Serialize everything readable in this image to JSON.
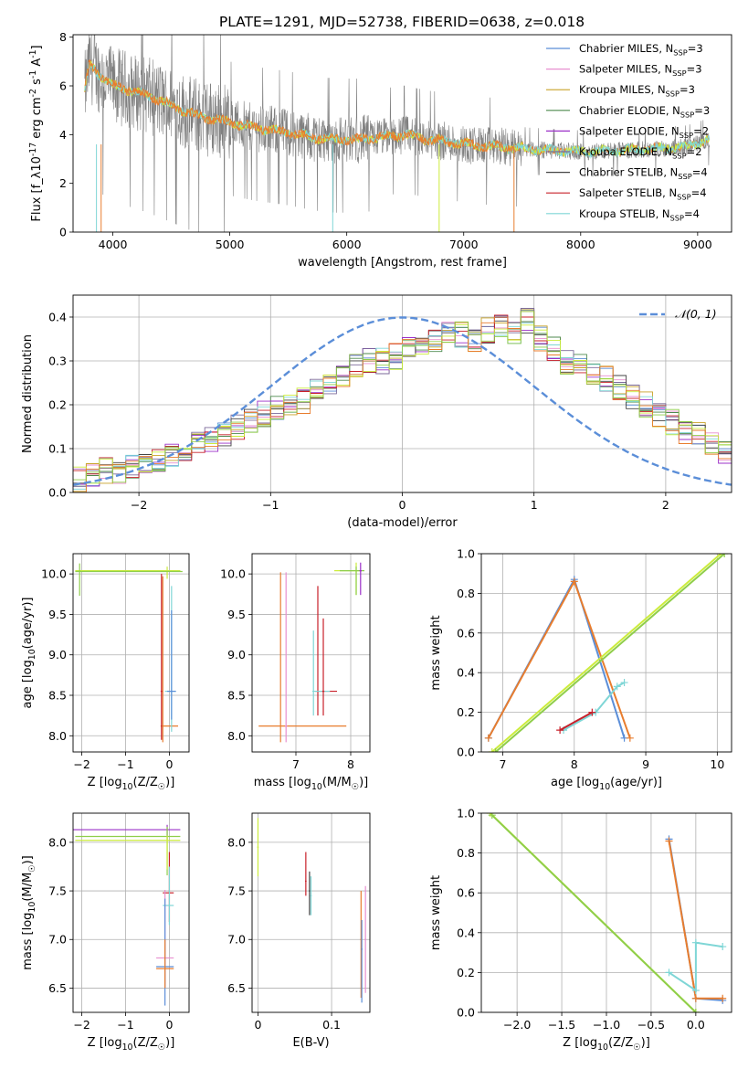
{
  "title": "PLATE=1291, MJD=52738, FIBERID=0638, z=0.018",
  "legend_series": [
    {
      "name": "Chabrier MILES, N_{SSP}=3",
      "color": "#5b8ed8"
    },
    {
      "name": "Salpeter MILES, N_{SSP}=3",
      "color": "#e88fcf"
    },
    {
      "name": "Kroupa MILES, N_{SSP}=3",
      "color": "#c9a227"
    },
    {
      "name": "Chabrier ELODIE, N_{SSP}=3",
      "color": "#4e8a4e"
    },
    {
      "name": "Salpeter ELODIE, N_{SSP}=2",
      "color": "#9b30c8"
    },
    {
      "name": "Kroupa ELODIE, N_{SSP}=2",
      "color": "#7b6a9a"
    },
    {
      "name": "Chabrier STELIB, N_{SSP}=4",
      "color": "#444444"
    },
    {
      "name": "Salpeter STELIB, N_{SSP}=4",
      "color": "#c8202a"
    },
    {
      "name": "Kroupa STELIB, N_{SSP}=4",
      "color": "#7fd6d6"
    }
  ],
  "legend_gauss": "𝒩(0, 1)",
  "colors": {
    "data": "#808080",
    "orange": "#e87d2e",
    "yellow": "#ccec3c",
    "green": "#8fce4a",
    "gauss": "#5b8ed8",
    "grid": "#b0b0b0"
  },
  "chart_data": [
    {
      "type": "line",
      "title": "PLATE=1291, MJD=52738, FIBERID=0638, z=0.018",
      "xlabel": "wavelength [Angstrom, rest frame]",
      "ylabel": "Flux [f_λ10^{-17} erg cm^{-2} s^{-1} A^{-1}]",
      "xlim": [
        3660,
        9290
      ],
      "ylim": [
        0,
        8.1
      ],
      "xticks": [
        4000,
        5000,
        6000,
        7000,
        8000,
        9000
      ],
      "yticks": [
        0,
        2,
        4,
        6,
        8
      ],
      "model_continuum": {
        "x": [
          3760,
          3800,
          3900,
          4000,
          4100,
          4300,
          4500,
          4700,
          5000,
          5200,
          5500,
          5700,
          5900,
          6100,
          6300,
          6500,
          6700,
          6900,
          7100,
          7300,
          7450,
          7600,
          7800,
          8000,
          8300,
          8600,
          8900,
          9100
        ],
        "y": [
          5.8,
          6.9,
          6.4,
          6.0,
          5.9,
          5.6,
          5.2,
          4.8,
          4.5,
          4.3,
          4.1,
          3.9,
          3.8,
          3.8,
          3.9,
          4.0,
          3.8,
          3.7,
          3.55,
          3.5,
          3.45,
          3.4,
          3.35,
          3.3,
          3.35,
          3.4,
          3.5,
          3.8
        ]
      },
      "grid": false,
      "legend_position": "upper-right"
    },
    {
      "type": "step",
      "xlabel": "(data-model)/error",
      "ylabel": "Normed distribution",
      "xlim": [
        -2.5,
        2.5
      ],
      "ylim": [
        0,
        0.45
      ],
      "xticks": [
        -2,
        -1,
        0,
        1,
        2
      ],
      "yticks": [
        0.0,
        0.1,
        0.2,
        0.3,
        0.4
      ],
      "bin_edges_start": -2.5,
      "bin_width": 0.1,
      "histogram_base": [
        0.03,
        0.04,
        0.05,
        0.05,
        0.06,
        0.06,
        0.07,
        0.08,
        0.1,
        0.11,
        0.12,
        0.13,
        0.15,
        0.16,
        0.18,
        0.19,
        0.2,
        0.21,
        0.24,
        0.25,
        0.27,
        0.29,
        0.3,
        0.3,
        0.31,
        0.33,
        0.34,
        0.35,
        0.36,
        0.36,
        0.35,
        0.37,
        0.38,
        0.36,
        0.39,
        0.35,
        0.33,
        0.3,
        0.29,
        0.27,
        0.26,
        0.24,
        0.22,
        0.2,
        0.18,
        0.16,
        0.14,
        0.13,
        0.11,
        0.09
      ],
      "grid": true,
      "legend_position": "upper-right"
    },
    {
      "type": "errorbar",
      "xlabel": "Z [log_{10}(Z/Z_{☉})]",
      "ylabel": "age  [log_{10}(age/yr)]",
      "xlim": [
        -2.2,
        0.45
      ],
      "ylim": [
        7.8,
        10.25
      ],
      "xticks": [
        -2,
        -1,
        0
      ],
      "yticks": [
        8.0,
        8.5,
        9.0,
        9.5,
        10.0
      ],
      "grid": true
    },
    {
      "type": "errorbar",
      "xlabel": "mass [log_{10}(M/M_{☉})]",
      "xlim": [
        6.2,
        8.35
      ],
      "ylim": [
        7.8,
        10.25
      ],
      "xticks": [
        7,
        8
      ],
      "yticks": [
        8.0,
        8.5,
        9.0,
        9.5,
        10.0
      ],
      "grid": true
    },
    {
      "type": "line",
      "xlabel": "age  [log_{10}(age/yr)]",
      "ylabel": "mass weight",
      "xlim": [
        6.7,
        10.2
      ],
      "ylim": [
        0,
        1
      ],
      "xticks": [
        7,
        8,
        9,
        10
      ],
      "yticks": [
        0.0,
        0.2,
        0.4,
        0.6,
        0.8,
        1.0
      ],
      "series": [
        {
          "color": "#5b8ed8",
          "x": [
            6.8,
            8.0,
            8.7
          ],
          "y": [
            0.07,
            0.87,
            0.07
          ]
        },
        {
          "color": "#e87d2e",
          "x": [
            6.8,
            8.0,
            8.78
          ],
          "y": [
            0.07,
            0.86,
            0.07
          ]
        },
        {
          "color": "#ccec3c",
          "x": [
            6.85,
            10.05
          ],
          "y": [
            0.0,
            1.0
          ]
        },
        {
          "color": "#8fce4a",
          "x": [
            6.9,
            10.1
          ],
          "y": [
            0.0,
            1.0
          ]
        },
        {
          "color": "#7fd6d6",
          "x": [
            7.85,
            8.3,
            8.6,
            8.7
          ],
          "y": [
            0.11,
            0.2,
            0.33,
            0.35
          ]
        },
        {
          "color": "#c8202a",
          "x": [
            7.8,
            8.25
          ],
          "y": [
            0.11,
            0.2
          ]
        }
      ],
      "grid": true
    },
    {
      "type": "errorbar",
      "xlabel": "Z [log_{10}(Z/Z_{☉})]",
      "ylabel": "mass [log_{10}(M/M_{☉})]",
      "xlim": [
        -2.2,
        0.45
      ],
      "ylim": [
        6.25,
        8.3
      ],
      "xticks": [
        -2,
        -1,
        0
      ],
      "yticks": [
        6.5,
        7.0,
        7.5,
        8.0
      ],
      "grid": true
    },
    {
      "type": "errorbar",
      "xlabel": "E(B-V)",
      "xlim": [
        -0.008,
        0.152
      ],
      "ylim": [
        6.25,
        8.3
      ],
      "xticks": [
        0.0,
        0.1
      ],
      "yticks": [
        6.5,
        7.0,
        7.5,
        8.0
      ],
      "grid": true
    },
    {
      "type": "line",
      "xlabel": "Z [log_{10}(Z/Z_{☉})]",
      "ylabel": "mass weight",
      "xlim": [
        -2.4,
        0.4
      ],
      "ylim": [
        0,
        1
      ],
      "xticks": [
        -2.0,
        -1.5,
        -1.0,
        -0.5,
        0.0
      ],
      "yticks": [
        0.0,
        0.2,
        0.4,
        0.6,
        0.8,
        1.0
      ],
      "series": [
        {
          "color": "#ccec3c",
          "x": [
            -2.3,
            0.0
          ],
          "y": [
            1.0,
            0.0
          ]
        },
        {
          "color": "#8fce4a",
          "x": [
            -2.28,
            0.0
          ],
          "y": [
            0.99,
            0.0
          ]
        },
        {
          "color": "#5b8ed8",
          "x": [
            -0.3,
            0.0,
            0.3
          ],
          "y": [
            0.87,
            0.07,
            0.06
          ]
        },
        {
          "color": "#e87d2e",
          "x": [
            -0.3,
            0.0,
            0.3
          ],
          "y": [
            0.86,
            0.07,
            0.07
          ]
        },
        {
          "color": "#7fd6d6",
          "x": [
            -0.3,
            0.0,
            0.0,
            0.3
          ],
          "y": [
            0.2,
            0.11,
            0.35,
            0.33
          ]
        }
      ],
      "grid": true
    }
  ]
}
